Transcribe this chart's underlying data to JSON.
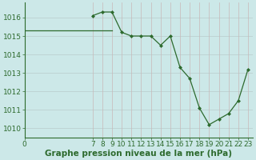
{
  "x": [
    7,
    8,
    9,
    10,
    11,
    12,
    13,
    14,
    15,
    16,
    17,
    18,
    19,
    20,
    21,
    22,
    23
  ],
  "y": [
    1016.1,
    1016.3,
    1016.3,
    1015.2,
    1015.0,
    1015.0,
    1015.0,
    1014.5,
    1015.0,
    1013.3,
    1012.7,
    1011.1,
    1010.2,
    1010.5,
    1010.8,
    1011.5,
    1013.2
  ],
  "x_flat_start": 0,
  "x_flat_end": 9,
  "y_flat": 1015.3,
  "line_color": "#2d6a2d",
  "marker_color": "#2d6a2d",
  "bg_color": "#cce8e8",
  "grid_color_v": "#c8b8b8",
  "grid_color_h": "#b8cccc",
  "xlabel": "Graphe pression niveau de la mer (hPa)",
  "xlim": [
    0,
    23.5
  ],
  "ylim": [
    1009.5,
    1016.8
  ],
  "yticks": [
    1010,
    1011,
    1012,
    1013,
    1014,
    1015,
    1016
  ],
  "xticks": [
    0,
    7,
    8,
    9,
    10,
    11,
    12,
    13,
    14,
    15,
    16,
    17,
    18,
    19,
    20,
    21,
    22,
    23
  ],
  "label_fontsize": 7.5,
  "tick_fontsize": 6.5
}
